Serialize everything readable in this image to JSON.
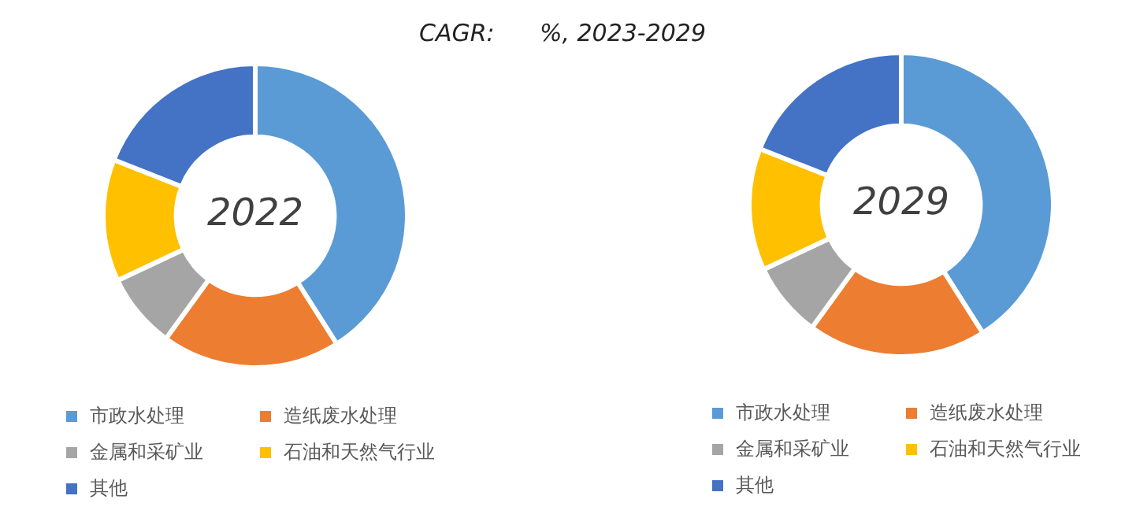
{
  "chart_data": [
    {
      "type": "donut",
      "title": "2022",
      "annotations": [
        "CAGR:      %, 2023-2029"
      ],
      "categories": [
        "市政水处理",
        "造纸废水处理",
        "金属和采矿业",
        "石油和天然气行业",
        "其他"
      ],
      "values": [
        41,
        19,
        8,
        13,
        19
      ],
      "colors": [
        "#5b9bd5",
        "#ed7d31",
        "#a5a5a5",
        "#ffc000",
        "#4472c4"
      ],
      "legend": "bottom"
    },
    {
      "type": "donut",
      "title": "2029",
      "categories": [
        "市政水处理",
        "造纸废水处理",
        "金属和采矿业",
        "石油和天然气行业",
        "其他"
      ],
      "values": [
        41,
        19,
        8,
        13,
        19
      ],
      "colors": [
        "#5b9bd5",
        "#ed7d31",
        "#a5a5a5",
        "#ffc000",
        "#4472c4"
      ],
      "legend": "bottom"
    }
  ]
}
